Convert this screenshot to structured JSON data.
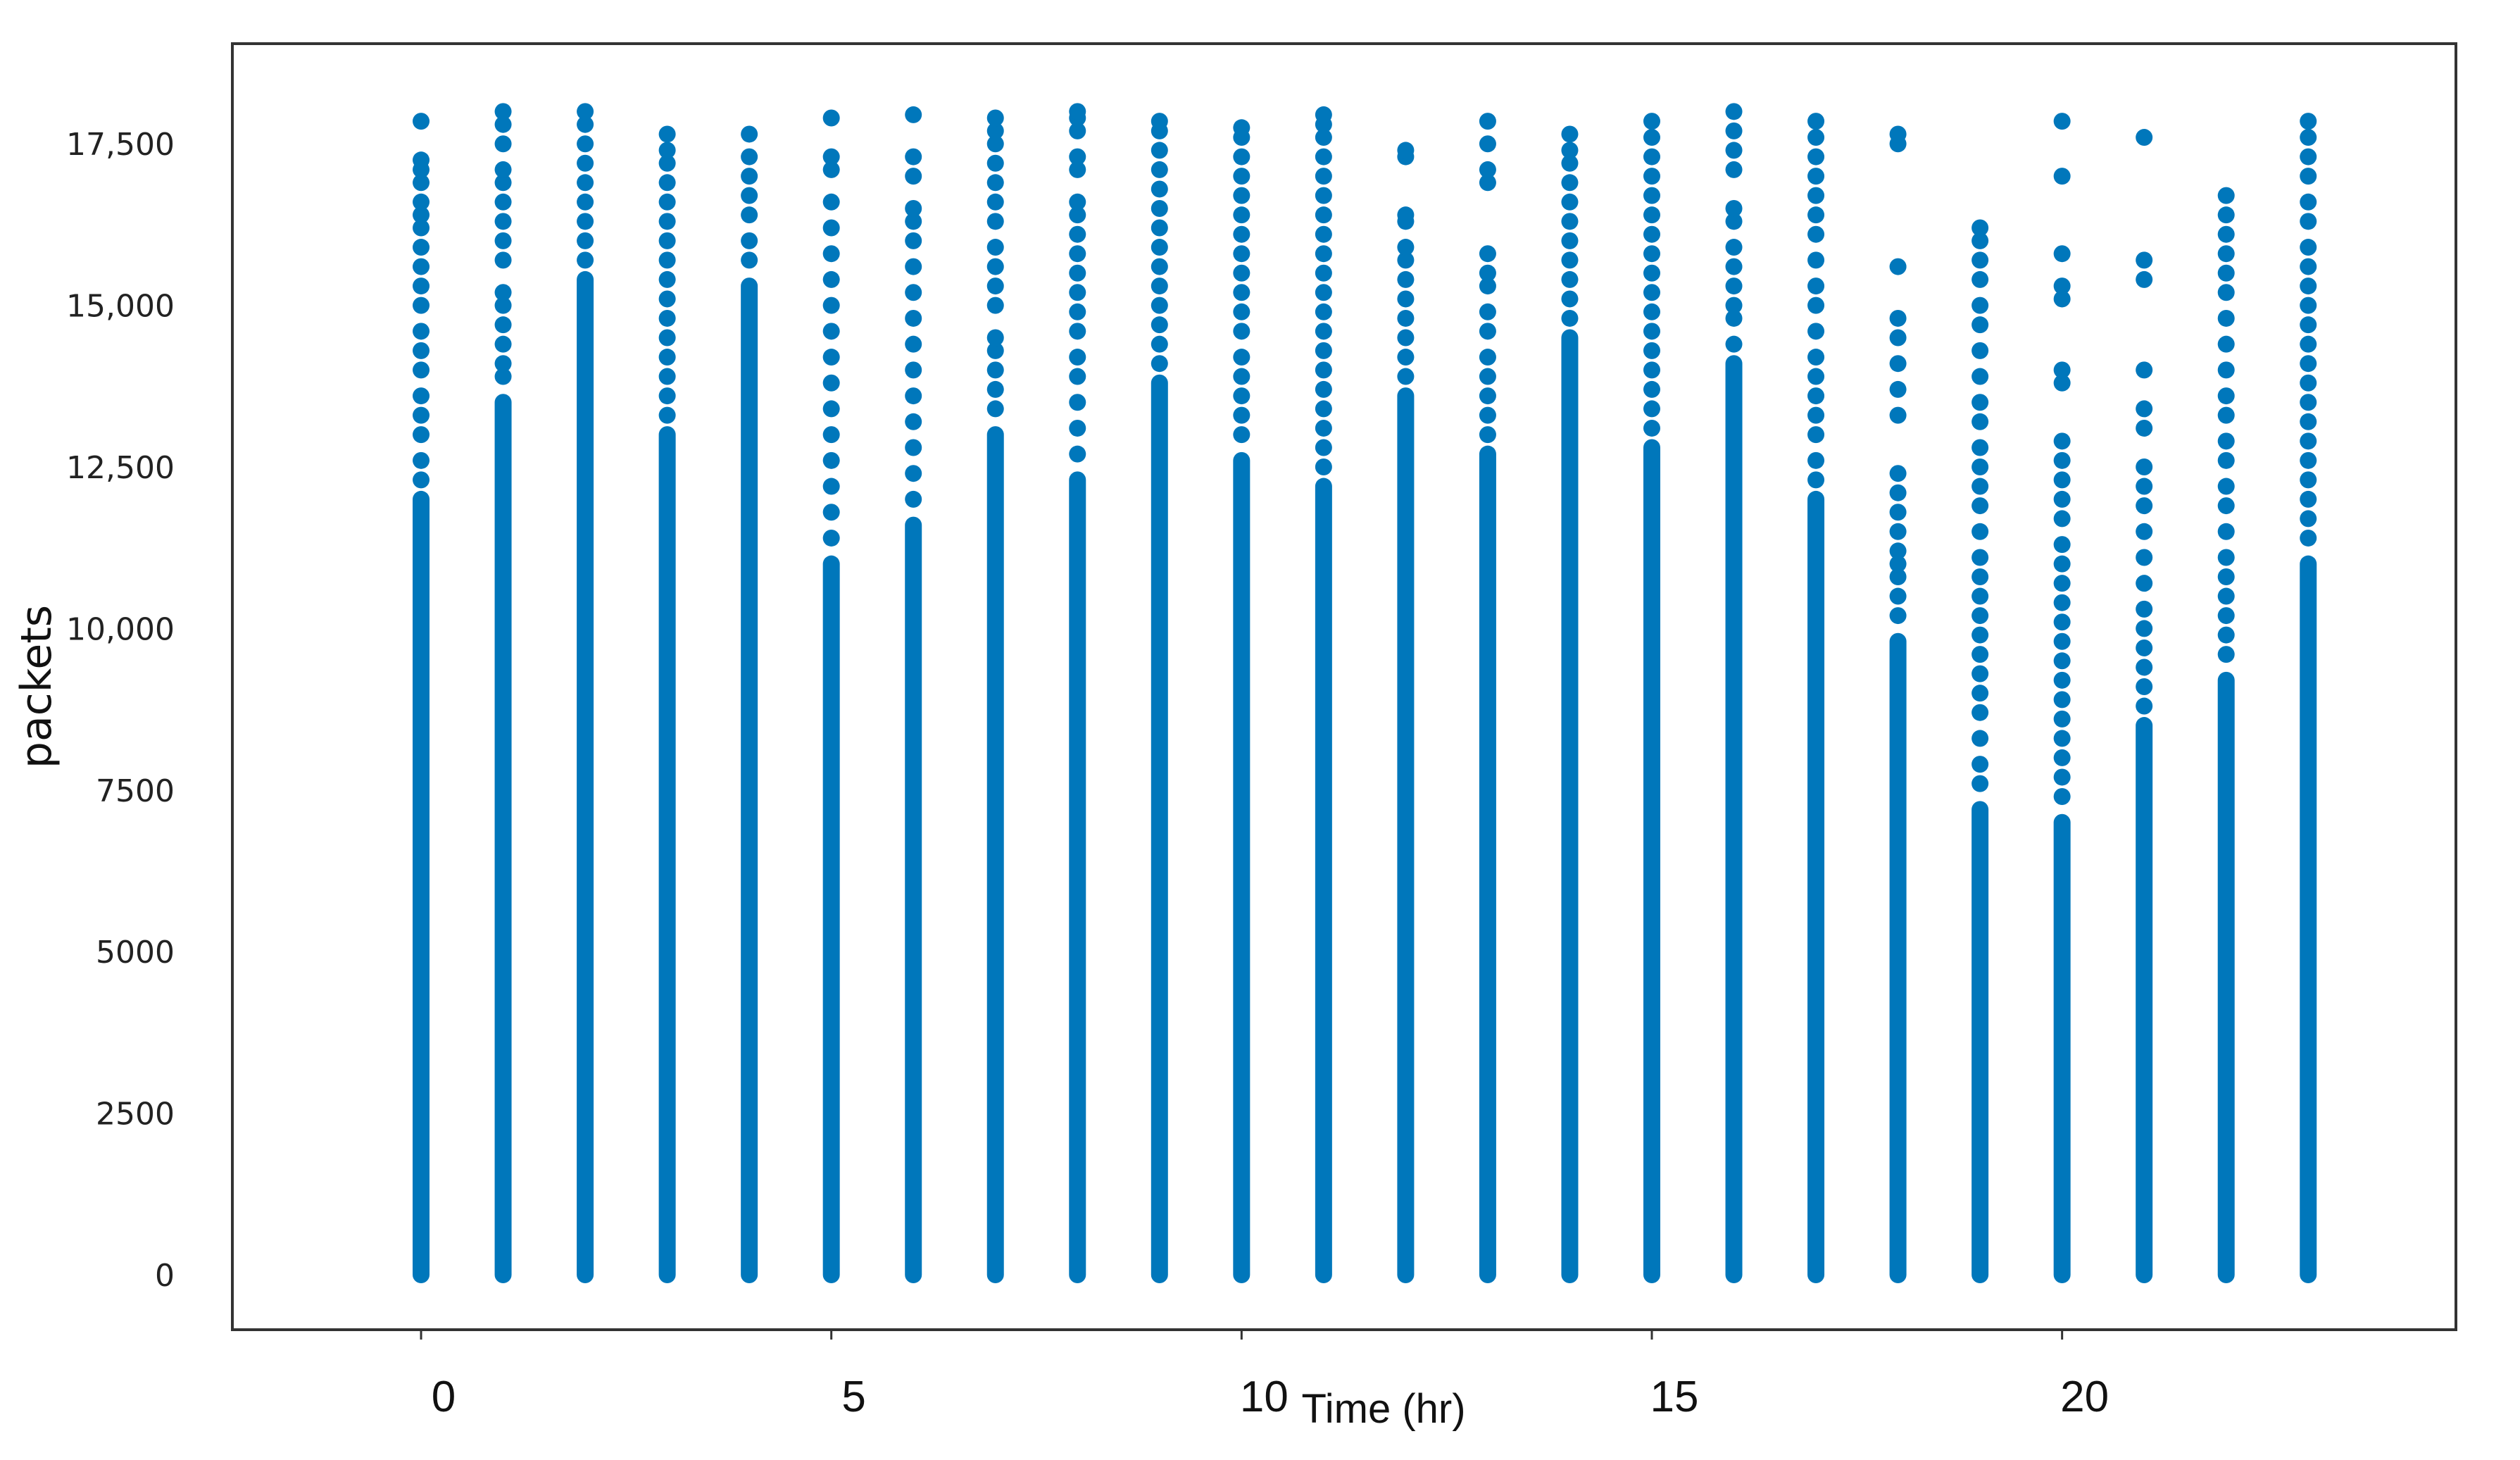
{
  "chart_data": {
    "type": "scatter",
    "title": "",
    "xlabel": "Time (hr)",
    "ylabel": "packets",
    "xlim": [
      -2.3,
      24.8
    ],
    "ylim": [
      -850,
      19050
    ],
    "x_ticks": [
      0,
      5,
      10,
      15,
      20
    ],
    "x_tick_labels": [
      "0",
      "5",
      "10",
      "15",
      "20"
    ],
    "y_ticks": [
      0,
      2500,
      5000,
      7500,
      10000,
      12500,
      15000,
      17500
    ],
    "y_tick_labels": [
      "0",
      "2500",
      "5000",
      "7500",
      "10,000",
      "12,500",
      "15,000",
      "17,500"
    ],
    "grid": false,
    "marker_color": "#0077bb",
    "series": [
      {
        "columns": [
          {
            "x": 0,
            "dense_max": 12000,
            "outliers": [
              12300,
              12600,
              13000,
              13300,
              13600,
              14000,
              14300,
              14600,
              15000,
              15300,
              15600,
              15900,
              16200,
              16400,
              16600,
              16900,
              17100,
              17250,
              17850
            ]
          },
          {
            "x": 1,
            "dense_max": 13500,
            "outliers": [
              13900,
              14100,
              14400,
              14700,
              15000,
              15200,
              15700,
              16000,
              16300,
              16600,
              16900,
              17100,
              17500,
              17800,
              18000
            ]
          },
          {
            "x": 2,
            "dense_max": 15400,
            "outliers": [
              15700,
              16000,
              16300,
              16600,
              16900,
              17200,
              17500,
              17800,
              18000
            ]
          },
          {
            "x": 3,
            "dense_max": 13000,
            "outliers": [
              13300,
              13600,
              13900,
              14200,
              14500,
              14800,
              15100,
              15400,
              15700,
              16000,
              16300,
              16600,
              16900,
              17200,
              17400,
              17650
            ]
          },
          {
            "x": 4,
            "dense_max": 15300,
            "outliers": [
              15700,
              16000,
              16400,
              16700,
              17000,
              17300,
              17650
            ]
          },
          {
            "x": 5,
            "dense_max": 11000,
            "outliers": [
              11400,
              11800,
              12200,
              12600,
              13000,
              13400,
              13800,
              14200,
              14600,
              15000,
              15400,
              15800,
              16200,
              16600,
              17100,
              17300,
              17900
            ]
          },
          {
            "x": 6,
            "dense_max": 11600,
            "outliers": [
              12000,
              12400,
              12800,
              13200,
              13600,
              14000,
              14400,
              14800,
              15200,
              15600,
              16000,
              16300,
              16500,
              17000,
              17300,
              17950
            ]
          },
          {
            "x": 7,
            "dense_max": 13000,
            "outliers": [
              13400,
              13700,
              14000,
              14300,
              14500,
              15000,
              15300,
              15600,
              15900,
              16300,
              16600,
              16900,
              17200,
              17500,
              17700,
              17900
            ]
          },
          {
            "x": 8,
            "dense_max": 12300,
            "outliers": [
              12700,
              13100,
              13500,
              13900,
              14200,
              14600,
              14900,
              15200,
              15500,
              15800,
              16100,
              16400,
              16600,
              17100,
              17300,
              17700,
              17900,
              18000
            ]
          },
          {
            "x": 9,
            "dense_max": 13800,
            "outliers": [
              14100,
              14400,
              14700,
              15000,
              15300,
              15600,
              15900,
              16200,
              16500,
              16800,
              17100,
              17400,
              17700,
              17850
            ]
          },
          {
            "x": 10,
            "dense_max": 12600,
            "outliers": [
              13000,
              13300,
              13600,
              13900,
              14200,
              14600,
              14900,
              15200,
              15500,
              15800,
              16100,
              16400,
              16700,
              17000,
              17300,
              17600,
              17750
            ]
          },
          {
            "x": 11,
            "dense_max": 12200,
            "outliers": [
              12500,
              12800,
              13100,
              13400,
              13700,
              14000,
              14300,
              14600,
              14900,
              15200,
              15500,
              15800,
              16100,
              16400,
              16700,
              17000,
              17300,
              17600,
              17800,
              17950
            ]
          },
          {
            "x": 12,
            "dense_max": 13600,
            "outliers": [
              13900,
              14200,
              14500,
              14800,
              15100,
              15400,
              15700,
              15900,
              16300,
              16400,
              17300,
              17400
            ]
          },
          {
            "x": 13,
            "dense_max": 12700,
            "outliers": [
              13000,
              13300,
              13600,
              13900,
              14200,
              14600,
              14900,
              15300,
              15500,
              15800,
              16900,
              17100,
              17500,
              17850
            ]
          },
          {
            "x": 14,
            "dense_max": 14500,
            "outliers": [
              14800,
              15100,
              15400,
              15700,
              16000,
              16300,
              16600,
              16900,
              17200,
              17400,
              17650
            ]
          },
          {
            "x": 15,
            "dense_max": 12800,
            "outliers": [
              13100,
              13400,
              13700,
              14000,
              14300,
              14600,
              14900,
              15200,
              15500,
              15800,
              16100,
              16400,
              16700,
              17000,
              17300,
              17600,
              17850
            ]
          },
          {
            "x": 16,
            "dense_max": 14100,
            "outliers": [
              14400,
              14800,
              15000,
              15300,
              15600,
              15900,
              16300,
              16500,
              17100,
              17400,
              17700,
              18000
            ]
          },
          {
            "x": 17,
            "dense_max": 12000,
            "outliers": [
              12300,
              12600,
              13000,
              13300,
              13600,
              13900,
              14200,
              14600,
              15000,
              15300,
              15700,
              16100,
              16400,
              16700,
              17000,
              17300,
              17600,
              17850
            ]
          },
          {
            "x": 18,
            "dense_max": 9800,
            "outliers": [
              10200,
              10500,
              10800,
              11000,
              11200,
              11500,
              11800,
              12100,
              12400,
              13300,
              13700,
              14100,
              14500,
              14800,
              15600,
              17500,
              17650
            ]
          },
          {
            "x": 19,
            "dense_max": 7200,
            "outliers": [
              7600,
              7900,
              8300,
              8700,
              9000,
              9300,
              9600,
              9900,
              10200,
              10500,
              10800,
              11100,
              11500,
              11900,
              12200,
              12500,
              12800,
              13200,
              13500,
              13900,
              14300,
              14700,
              15000,
              15400,
              15700,
              16000,
              16200
            ]
          },
          {
            "x": 20,
            "dense_max": 7000,
            "outliers": [
              7400,
              7700,
              8000,
              8300,
              8600,
              8900,
              9200,
              9500,
              9800,
              10100,
              10400,
              10700,
              11000,
              11300,
              11700,
              12000,
              12300,
              12600,
              12900,
              13800,
              14000,
              15100,
              15300,
              15800,
              17000,
              17850
            ]
          },
          {
            "x": 21,
            "dense_max": 8500,
            "outliers": [
              8800,
              9100,
              9400,
              9700,
              10000,
              10300,
              10700,
              11100,
              11500,
              11900,
              12200,
              12500,
              13100,
              13400,
              14000,
              15400,
              15700,
              17600
            ]
          },
          {
            "x": 22,
            "dense_max": 9200,
            "outliers": [
              9600,
              9900,
              10200,
              10500,
              10800,
              11100,
              11500,
              11900,
              12200,
              12600,
              12900,
              13300,
              13600,
              14000,
              14400,
              14800,
              15200,
              15500,
              15800,
              16100,
              16400,
              16700
            ]
          },
          {
            "x": 23,
            "dense_max": 11000,
            "outliers": [
              11400,
              11700,
              12000,
              12300,
              12600,
              12900,
              13200,
              13500,
              13800,
              14100,
              14400,
              14700,
              15000,
              15300,
              15600,
              15900,
              16300,
              16600,
              17000,
              17300,
              17600,
              17850
            ]
          }
        ]
      }
    ]
  }
}
